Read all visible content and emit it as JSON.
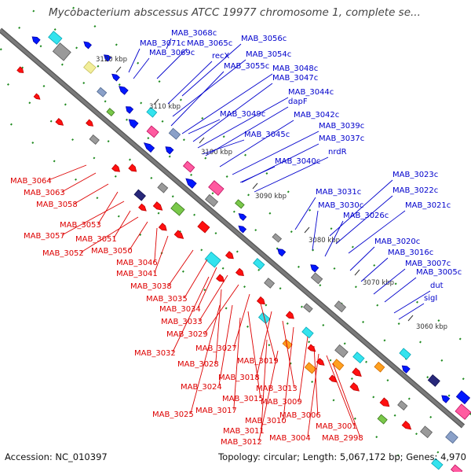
{
  "title": "Mycobacterium abscessus ATCC 19977 chromosome 1, complete se...",
  "footer": {
    "accession": "Accession: NC_010397",
    "stats": "Topology: circular; Length: 5,067,172 bp; Genes: 4,970"
  },
  "colors": {
    "forward_label": "#0000cc",
    "reverse_label": "#dd0000",
    "backbone": "#7a7a7a"
  },
  "ticks": [
    {
      "label": "3120 kbp"
    },
    {
      "label": "3110 kbp"
    },
    {
      "label": "3100 kbp"
    },
    {
      "label": "3090 kbp"
    },
    {
      "label": "3080 kbp"
    },
    {
      "label": "3070 kbp"
    },
    {
      "label": "3060 kbp"
    }
  ],
  "forward_genes": [
    "MAB_3068c",
    "MAB_3071c",
    "MAB_3065c",
    "MAB_3056c",
    "MAB_3069c",
    "recX",
    "MAB_3054c",
    "MAB_3055c",
    "MAB_3048c",
    "MAB_3047c",
    "MAB_3044c",
    "dapF",
    "MAB_3049c",
    "MAB_3042c",
    "MAB_3039c",
    "MAB_3045c",
    "MAB_3037c",
    "nrdR",
    "MAB_3040c",
    "MAB_3023c",
    "MAB_3022c",
    "MAB_3031c",
    "MAB_3030c",
    "MAB_3021c",
    "MAB_3026c",
    "MAB_3020c",
    "MAB_3016c",
    "MAB_3007c",
    "MAB_3005c",
    "dut",
    "sigI"
  ],
  "reverse_genes": [
    "MAB_3064",
    "MAB_3063",
    "MAB_3058",
    "MAB_3053",
    "MAB_3057",
    "MAB_3051",
    "MAB_3052",
    "MAB_3050",
    "MAB_3046",
    "MAB_3041",
    "MAB_3038",
    "MAB_3035",
    "MAB_3034",
    "MAB_3033",
    "MAB_3029",
    "MAB_3027",
    "MAB_3032",
    "MAB_3019",
    "MAB_3028",
    "MAB_3018",
    "MAB_3024",
    "MAB_3013",
    "MAB_3015",
    "MAB_3009",
    "MAB_3017",
    "MAB_3010",
    "MAB_3006",
    "MAB_3025",
    "MAB_3011",
    "MAB_3001",
    "MAB_3012",
    "MAB_3004",
    "MAB_2998"
  ]
}
